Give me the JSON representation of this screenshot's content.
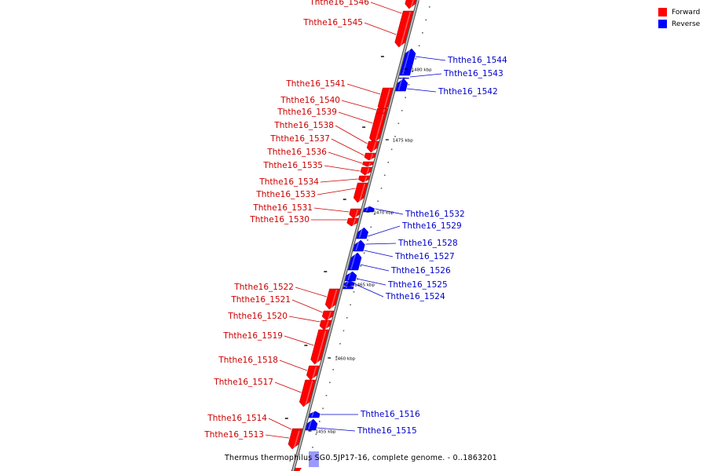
{
  "title": "Thermus thermophilus SG0.5JP17-16, complete genome. - 0..1863201",
  "legend": [
    {
      "label": "Forward",
      "color": "#ff0000"
    },
    {
      "label": "Reverse",
      "color": "#0000ff"
    }
  ],
  "colors": {
    "forward": "#ff0000",
    "reverse": "#0000ff",
    "forward_label": "#cc0000",
    "reverse_label": "#0000cc",
    "backbone": "#909090"
  },
  "ticks": [
    {
      "label": "1480 kbp"
    },
    {
      "label": "1475 kbp"
    },
    {
      "label": "1470 kbp"
    },
    {
      "label": "1465 kbp"
    },
    {
      "label": "1460 kbp"
    },
    {
      "label": "1455 kbp"
    }
  ],
  "genes": [
    {
      "name": "Ththe16_1546",
      "strand": "forward"
    },
    {
      "name": "Ththe16_1545",
      "strand": "forward"
    },
    {
      "name": "Ththe16_1544",
      "strand": "reverse"
    },
    {
      "name": "Ththe16_1543",
      "strand": "reverse"
    },
    {
      "name": "Ththe16_1542",
      "strand": "reverse"
    },
    {
      "name": "Ththe16_1541",
      "strand": "forward"
    },
    {
      "name": "Ththe16_1540",
      "strand": "forward"
    },
    {
      "name": "Ththe16_1539",
      "strand": "forward"
    },
    {
      "name": "Ththe16_1538",
      "strand": "forward"
    },
    {
      "name": "Ththe16_1537",
      "strand": "forward"
    },
    {
      "name": "Ththe16_1536",
      "strand": "forward"
    },
    {
      "name": "Ththe16_1535",
      "strand": "forward"
    },
    {
      "name": "Ththe16_1534",
      "strand": "forward"
    },
    {
      "name": "Ththe16_1533",
      "strand": "forward"
    },
    {
      "name": "Ththe16_1532",
      "strand": "reverse"
    },
    {
      "name": "Ththe16_1531",
      "strand": "forward"
    },
    {
      "name": "Ththe16_1530",
      "strand": "forward"
    },
    {
      "name": "Ththe16_1529",
      "strand": "reverse"
    },
    {
      "name": "Ththe16_1528",
      "strand": "reverse"
    },
    {
      "name": "Ththe16_1527",
      "strand": "reverse"
    },
    {
      "name": "Ththe16_1526",
      "strand": "reverse"
    },
    {
      "name": "Ththe16_1525",
      "strand": "reverse"
    },
    {
      "name": "Ththe16_1524",
      "strand": "reverse"
    },
    {
      "name": "Ththe16_1522",
      "strand": "forward"
    },
    {
      "name": "Ththe16_1521",
      "strand": "forward"
    },
    {
      "name": "Ththe16_1520",
      "strand": "forward"
    },
    {
      "name": "Ththe16_1519",
      "strand": "forward"
    },
    {
      "name": "Ththe16_1518",
      "strand": "forward"
    },
    {
      "name": "Ththe16_1517",
      "strand": "forward"
    },
    {
      "name": "Ththe16_1516",
      "strand": "reverse"
    },
    {
      "name": "Ththe16_1515",
      "strand": "reverse"
    },
    {
      "name": "Ththe16_1514",
      "strand": "forward"
    },
    {
      "name": "Ththe16_1513",
      "strand": "forward"
    }
  ]
}
